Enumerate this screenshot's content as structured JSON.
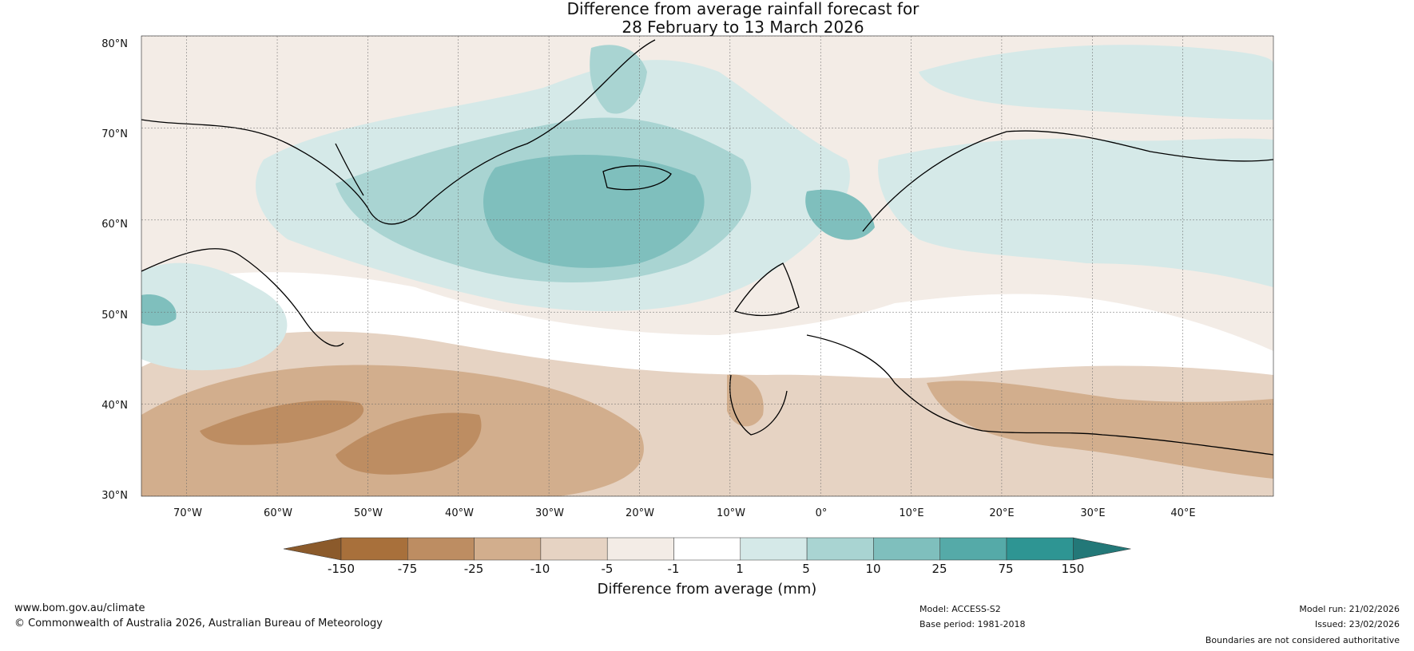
{
  "title": {
    "line1": "Difference from average rainfall forecast for",
    "line2": "28 February to 13 March 2026"
  },
  "map": {
    "lat_labels": [
      "80°N",
      "70°N",
      "60°N",
      "50°N",
      "40°N",
      "30°N"
    ],
    "lon_labels": [
      "70°W",
      "60°W",
      "50°W",
      "40°W",
      "30°W",
      "20°W",
      "10°W",
      "0°",
      "10°E",
      "20°E",
      "30°E",
      "40°E"
    ],
    "lat_range": [
      30,
      80
    ],
    "lon_range": [
      -75,
      50
    ]
  },
  "colorbar": {
    "label": "Difference from average (mm)",
    "ticks": [
      "-150",
      "-75",
      "-25",
      "-10",
      "-5",
      "-1",
      "1",
      "5",
      "10",
      "25",
      "75",
      "150"
    ],
    "colors": [
      "#8b5a2b",
      "#a8703b",
      "#bd8d62",
      "#d2ae8d",
      "#e6d3c3",
      "#f3ece6",
      "#ffffff",
      "#d5e9e8",
      "#a9d4d2",
      "#7fbfbd",
      "#55aaa8",
      "#2e9593",
      "#237878"
    ]
  },
  "footer": {
    "website": "www.bom.gov.au/climate",
    "copyright": "© Commonwealth of Australia 2026, Australian Bureau of Meteorology",
    "model": "Model: ACCESS-S2",
    "base_period": "Base period: 1981-2018",
    "model_run": "Model run: 21/02/2026",
    "issued": "Issued: 23/02/2026",
    "disclaimer": "Boundaries are not considered authoritative"
  }
}
